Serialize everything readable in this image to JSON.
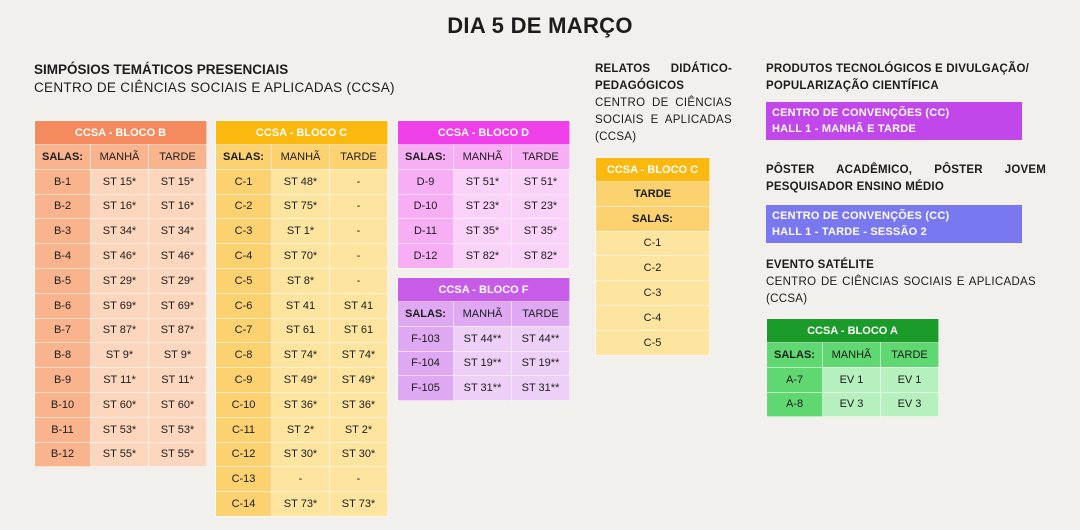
{
  "title": "DIA 5 DE MARÇO",
  "simposios": {
    "heading": "SIMPÓSIOS TEMÁTICOS PRESENCIAIS",
    "subheading": "CENTRO DE CIÊNCIAS SOCIAIS E APLICADAS (CCSA)",
    "col_salas": "SALAS:",
    "col_manha": "MANHÃ",
    "col_tarde": "TARDE",
    "bloco_b": {
      "title": "CCSA - BLOCO B",
      "rows": [
        {
          "sala": "B-1",
          "manha": "ST 15*",
          "tarde": "ST 15*"
        },
        {
          "sala": "B-2",
          "manha": "ST 16*",
          "tarde": "ST 16*"
        },
        {
          "sala": "B-3",
          "manha": "ST 34*",
          "tarde": "ST 34*"
        },
        {
          "sala": "B-4",
          "manha": "ST 46*",
          "tarde": "ST 46*"
        },
        {
          "sala": "B-5",
          "manha": "ST 29*",
          "tarde": "ST 29*"
        },
        {
          "sala": "B-6",
          "manha": "ST 69*",
          "tarde": "ST 69*"
        },
        {
          "sala": "B-7",
          "manha": "ST 87*",
          "tarde": "ST 87*"
        },
        {
          "sala": "B-8",
          "manha": "ST 9*",
          "tarde": "ST 9*"
        },
        {
          "sala": "B-9",
          "manha": "ST 11*",
          "tarde": "ST 11*"
        },
        {
          "sala": "B-10",
          "manha": "ST 60*",
          "tarde": "ST 60*"
        },
        {
          "sala": "B-11",
          "manha": "ST 53*",
          "tarde": "ST 53*"
        },
        {
          "sala": "B-12",
          "manha": "ST 55*",
          "tarde": "ST 55*"
        }
      ]
    },
    "bloco_c": {
      "title": "CCSA - BLOCO C",
      "rows": [
        {
          "sala": "C-1",
          "manha": "ST 48*",
          "tarde": "-"
        },
        {
          "sala": "C-2",
          "manha": "ST 75*",
          "tarde": "-"
        },
        {
          "sala": "C-3",
          "manha": "ST 1*",
          "tarde": "-"
        },
        {
          "sala": "C-4",
          "manha": "ST 70*",
          "tarde": "-"
        },
        {
          "sala": "C-5",
          "manha": "ST 8*",
          "tarde": "-"
        },
        {
          "sala": "C-6",
          "manha": "ST 41",
          "tarde": "ST 41"
        },
        {
          "sala": "C-7",
          "manha": "ST 61",
          "tarde": "ST 61"
        },
        {
          "sala": "C-8",
          "manha": "ST 74*",
          "tarde": "ST 74*"
        },
        {
          "sala": "C-9",
          "manha": "ST 49*",
          "tarde": "ST 49*"
        },
        {
          "sala": "C-10",
          "manha": "ST 36*",
          "tarde": "ST 36*"
        },
        {
          "sala": "C-11",
          "manha": "ST 2*",
          "tarde": "ST 2*"
        },
        {
          "sala": "C-12",
          "manha": "ST 30*",
          "tarde": "ST 30*"
        },
        {
          "sala": "C-13",
          "manha": "-",
          "tarde": "-"
        },
        {
          "sala": "C-14",
          "manha": "ST 73*",
          "tarde": "ST 73*"
        }
      ]
    },
    "bloco_d": {
      "title": "CCSA - BLOCO D",
      "rows": [
        {
          "sala": "D-9",
          "manha": "ST 51*",
          "tarde": "ST 51*"
        },
        {
          "sala": "D-10",
          "manha": "ST 23*",
          "tarde": "ST 23*"
        },
        {
          "sala": "D-11",
          "manha": "ST 35*",
          "tarde": "ST 35*"
        },
        {
          "sala": "D-12",
          "manha": "ST 82*",
          "tarde": "ST 82*"
        }
      ]
    },
    "bloco_f": {
      "title": "CCSA - BLOCO F",
      "rows": [
        {
          "sala": "F-103",
          "manha": "ST 44**",
          "tarde": "ST 44**"
        },
        {
          "sala": "F-104",
          "manha": "ST 19**",
          "tarde": "ST 19**"
        },
        {
          "sala": "F-105",
          "manha": "ST 31**",
          "tarde": "ST 31**"
        }
      ]
    }
  },
  "relatos": {
    "heading": "RELATOS DIDÁTICO-PEDAGÓGICOS",
    "heading_line1": "RELATOS DIDÁTICO-",
    "heading_line2": "PEDAGÓGICOS",
    "subheading": "CENTRO DE CIÊNCIAS SOCIAIS E APLICADAS (CCSA)",
    "table_title": "CCSA - BLOCO C",
    "periodo": "TARDE",
    "salas_label": "SALAS:",
    "salas": [
      "C-1",
      "C-2",
      "C-3",
      "C-4",
      "C-5"
    ]
  },
  "produtos": {
    "heading": "PRODUTOS TECNOLÓGICOS E DIVULGAÇÃO/ POPULARIZAÇÃO CIENTÍFICA",
    "badge_line1": "CENTRO DE CONVENÇÕES (CC)",
    "badge_line2": "HALL 1 - MANHÃ E TARDE"
  },
  "poster": {
    "heading": "PÔSTER ACADÊMICO, PÔSTER JOVEM PESQUISADOR ENSINO MÉDIO",
    "badge_line1": "CENTRO DE CONVENÇÕES (CC)",
    "badge_line2": "HALL 1 - TARDE - SESSÃO 2"
  },
  "evento": {
    "heading": "EVENTO SATÉLITE",
    "subheading": "CENTRO DE CIÊNCIAS SOCIAIS E APLICADAS (CCSA)",
    "table_title": "CCSA - BLOCO A",
    "rows": [
      {
        "sala": "A-7",
        "manha": "EV 1",
        "tarde": "EV 1"
      },
      {
        "sala": "A-8",
        "manha": "EV 3",
        "tarde": "EV 3"
      }
    ]
  },
  "colors": {
    "bloco_b": "#f58a5e",
    "bloco_c": "#fbb80e",
    "bloco_d": "#ef3fe8",
    "bloco_f": "#c75ce8",
    "bloco_a": "#1a9b2a",
    "badge_produtos": "#c147ea",
    "badge_poster": "#7a78f0"
  }
}
